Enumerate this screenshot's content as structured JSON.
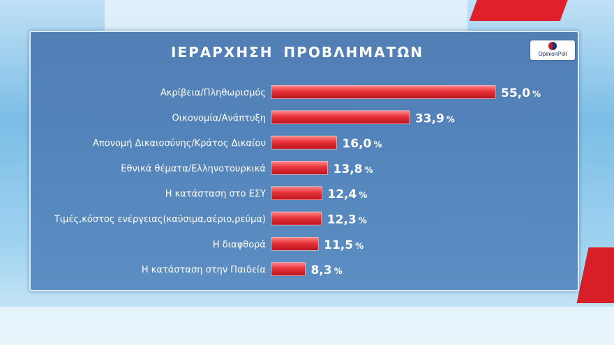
{
  "chart_data": {
    "type": "bar",
    "orientation": "horizontal",
    "title": "ΙΕΡΑΡΧΗΣΗ  ΠΡΟΒΛΗΜΑΤΩΝ",
    "categories": [
      "Ακρίβεια/Πληθωρισμός",
      "Οικονομία/Ανάπτυξη",
      "Απονομή Δικαιοσύνης/Κράτος Δικαίου",
      "Εθνικά θέματα/Ελληνοτουρκικά",
      "Η κατάσταση στο ΕΣΥ",
      "Τιμές,κόστος ενέργειας(καύσιμα,αέριο,ρεύμα)",
      "Η διαφθορά",
      "Η κατάσταση στην Παιδεία"
    ],
    "values": [
      55.0,
      33.9,
      16.0,
      13.8,
      12.4,
      12.3,
      11.5,
      8.3
    ],
    "value_labels": [
      "55,0",
      "33,9",
      "16,0",
      "13,8",
      "12,4",
      "12,3",
      "11,5",
      "8,3"
    ],
    "unit": "%",
    "bar_color": "#e8323a",
    "xlim": [
      0,
      60
    ],
    "grid": false
  },
  "brand": {
    "logo_text": "OpinionPoll"
  }
}
